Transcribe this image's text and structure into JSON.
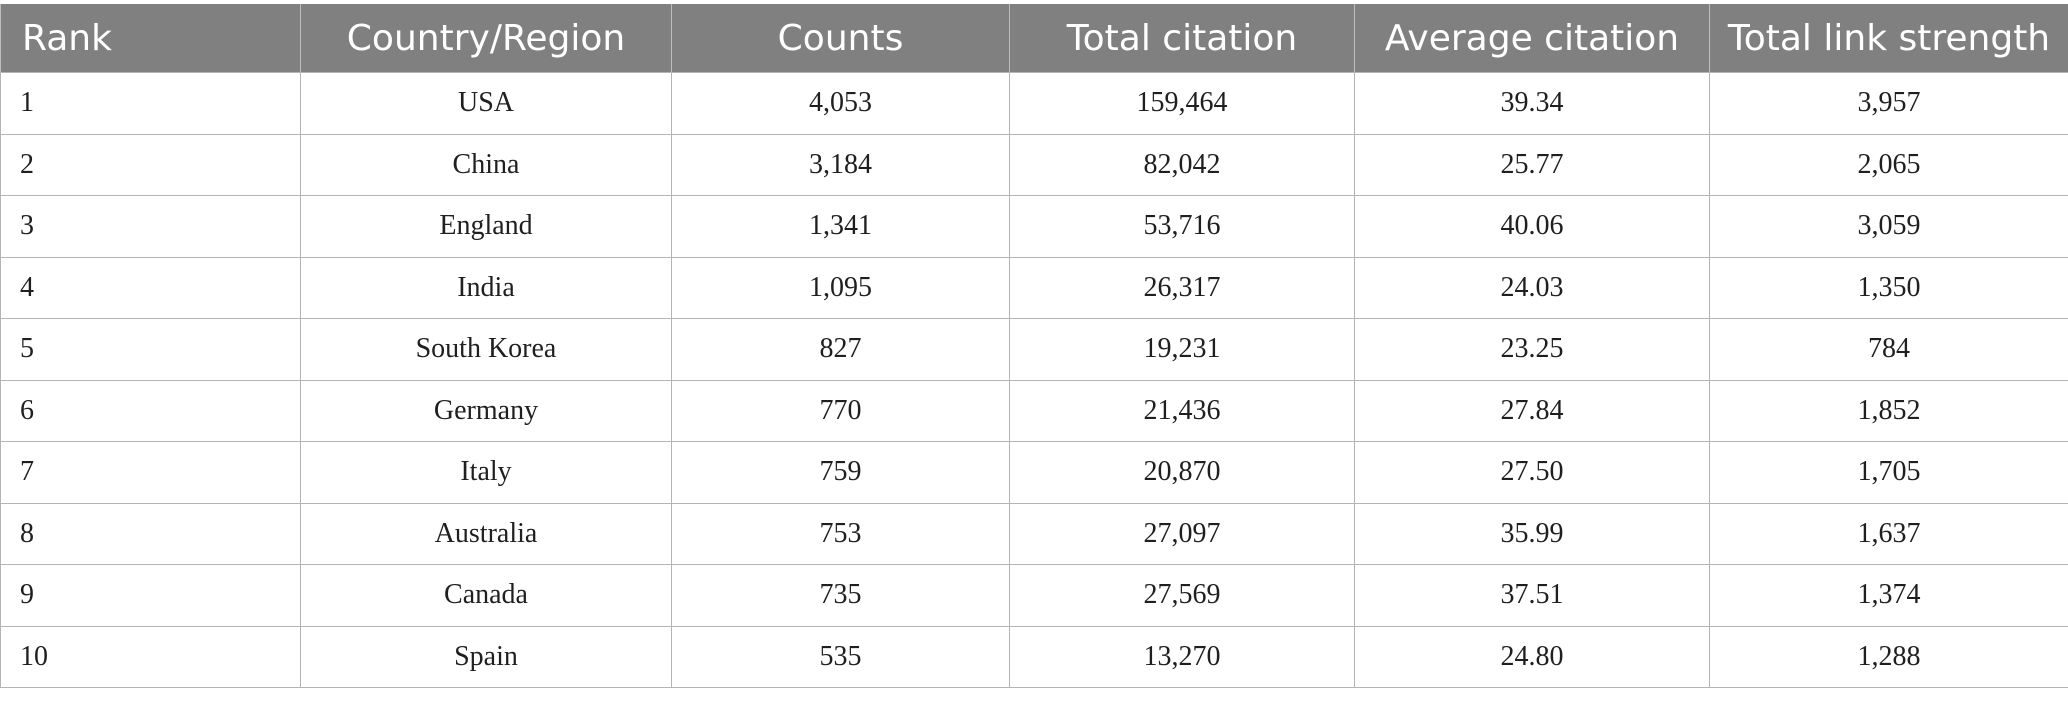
{
  "table": {
    "headers": [
      "Rank",
      "Country/Region",
      "Counts",
      "Total citation",
      "Average citation",
      "Total link strength"
    ],
    "rows": [
      [
        "1",
        "USA",
        "4,053",
        "159,464",
        "39.34",
        "3,957"
      ],
      [
        "2",
        "China",
        "3,184",
        "82,042",
        "25.77",
        "2,065"
      ],
      [
        "3",
        "England",
        "1,341",
        "53,716",
        "40.06",
        "3,059"
      ],
      [
        "4",
        "India",
        "1,095",
        "26,317",
        "24.03",
        "1,350"
      ],
      [
        "5",
        "South Korea",
        "827",
        "19,231",
        "23.25",
        "784"
      ],
      [
        "6",
        "Germany",
        "770",
        "21,436",
        "27.84",
        "1,852"
      ],
      [
        "7",
        "Italy",
        "759",
        "20,870",
        "27.50",
        "1,705"
      ],
      [
        "8",
        "Australia",
        "753",
        "27,097",
        "35.99",
        "1,637"
      ],
      [
        "9",
        "Canada",
        "735",
        "27,569",
        "37.51",
        "1,374"
      ],
      [
        "10",
        "Spain",
        "535",
        "13,270",
        "24.80",
        "1,288"
      ]
    ]
  },
  "colors": {
    "header_background": "#808080",
    "header_text": "#ffffff",
    "grid_line": "#b4b4b4",
    "body_text": "#1f1f1f"
  }
}
